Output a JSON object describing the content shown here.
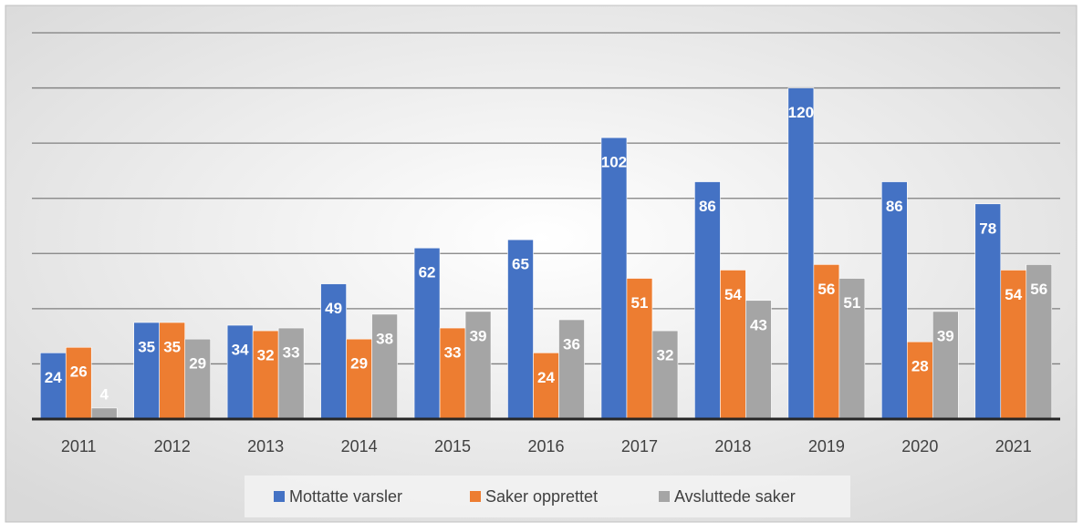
{
  "chart_data": {
    "type": "bar",
    "categories": [
      "2011",
      "2012",
      "2013",
      "2014",
      "2015",
      "2016",
      "2017",
      "2018",
      "2019",
      "2020",
      "2021"
    ],
    "series": [
      {
        "name": "Mottatte varsler",
        "color": "#4472c4",
        "values": [
          24,
          35,
          34,
          49,
          62,
          65,
          102,
          86,
          120,
          86,
          78
        ]
      },
      {
        "name": "Saker opprettet",
        "color": "#ed7d31",
        "values": [
          26,
          35,
          32,
          29,
          33,
          24,
          51,
          54,
          56,
          28,
          54
        ]
      },
      {
        "name": "Avsluttede saker",
        "color": "#a5a5a5",
        "values": [
          4,
          29,
          33,
          38,
          39,
          36,
          32,
          43,
          51,
          39,
          56
        ]
      }
    ],
    "ylim": [
      0,
      140
    ],
    "yticks": [
      0,
      20,
      40,
      60,
      80,
      100,
      120,
      140
    ],
    "grid": true,
    "legend": "bottom"
  }
}
